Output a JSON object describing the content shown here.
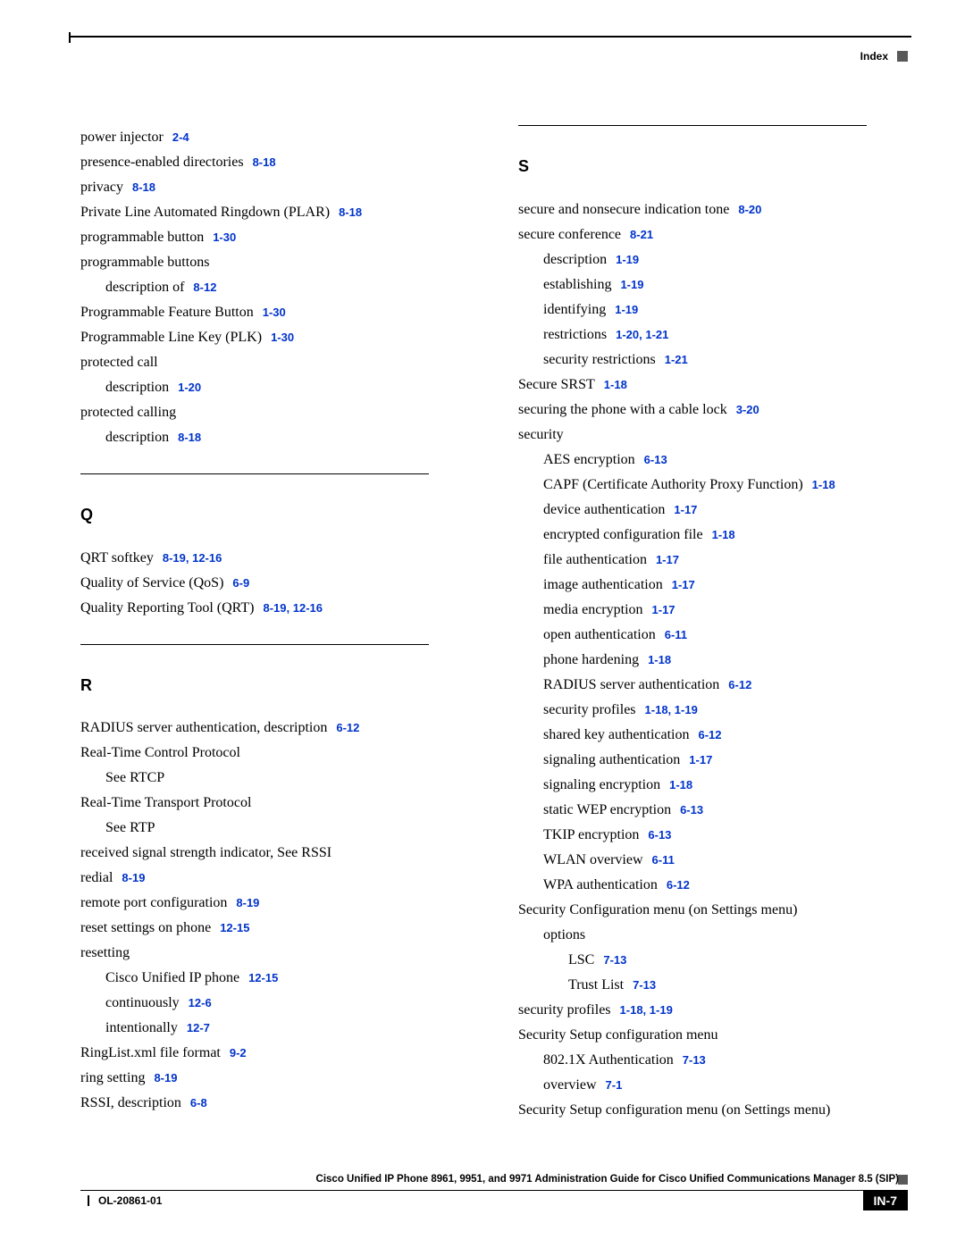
{
  "header": {
    "label": "Index"
  },
  "footer": {
    "title": "Cisco Unified IP Phone 8961, 9951, and 9971 Administration Guide for Cisco Unified Communications Manager 8.5 (SIP)",
    "doc": "OL-20861-01",
    "page": "IN-7"
  },
  "left": {
    "p": [
      {
        "t": "power injector",
        "r": "2-4"
      },
      {
        "t": "presence-enabled directories",
        "r": "8-18"
      },
      {
        "t": "privacy",
        "r": "8-18"
      },
      {
        "t": "Private Line Automated Ringdown (PLAR)",
        "r": "8-18"
      },
      {
        "t": "programmable button",
        "r": "1-30"
      },
      {
        "t": "programmable buttons"
      },
      {
        "t": "description of",
        "r": "8-12",
        "i": 1
      },
      {
        "t": "Programmable Feature Button",
        "r": "1-30"
      },
      {
        "t": "Programmable Line Key (PLK)",
        "r": "1-30"
      },
      {
        "t": "protected call"
      },
      {
        "t": "description",
        "r": "1-20",
        "i": 1
      },
      {
        "t": "protected calling"
      },
      {
        "t": "description",
        "r": "8-18",
        "i": 1
      }
    ],
    "q_letter": "Q",
    "q": [
      {
        "t": "QRT softkey",
        "r": "8-19, 12-16"
      },
      {
        "t": "Quality of Service (QoS)",
        "r": "6-9"
      },
      {
        "t": "Quality Reporting Tool (QRT)",
        "r": "8-19, 12-16"
      }
    ],
    "r_letter": "R",
    "r": [
      {
        "t": "RADIUS server authentication, description",
        "r": "6-12"
      },
      {
        "t": "Real-Time Control Protocol"
      },
      {
        "t": "See RTCP",
        "i": 1
      },
      {
        "t": "Real-Time Transport Protocol"
      },
      {
        "t": "See RTP",
        "i": 1
      },
      {
        "t": "received signal strength indicator, See RSSI"
      },
      {
        "t": "redial",
        "r": "8-19"
      },
      {
        "t": "remote port configuration",
        "r": "8-19"
      },
      {
        "t": "reset settings on phone",
        "r": "12-15"
      },
      {
        "t": "resetting"
      },
      {
        "t": "Cisco Unified IP phone",
        "r": "12-15",
        "i": 1
      },
      {
        "t": "continuously",
        "r": "12-6",
        "i": 1
      },
      {
        "t": "intentionally",
        "r": "12-7",
        "i": 1
      },
      {
        "t": "RingList.xml file format",
        "r": "9-2"
      },
      {
        "t": "ring setting",
        "r": "8-19"
      },
      {
        "t": "RSSI, description",
        "r": "6-8"
      }
    ]
  },
  "right": {
    "s_letter": "S",
    "s": [
      {
        "t": "secure and nonsecure indication tone",
        "r": "8-20"
      },
      {
        "t": "secure conference",
        "r": "8-21"
      },
      {
        "t": "description",
        "r": "1-19",
        "i": 1
      },
      {
        "t": "establishing",
        "r": "1-19",
        "i": 1
      },
      {
        "t": "identifying",
        "r": "1-19",
        "i": 1
      },
      {
        "t": "restrictions",
        "r": "1-20, 1-21",
        "i": 1
      },
      {
        "t": "security restrictions",
        "r": "1-21",
        "i": 1
      },
      {
        "t": "Secure SRST",
        "r": "1-18"
      },
      {
        "t": "securing the phone with a cable lock",
        "r": "3-20"
      },
      {
        "t": "security"
      },
      {
        "t": "AES encryption",
        "r": "6-13",
        "i": 1
      },
      {
        "t": "CAPF (Certificate Authority Proxy Function)",
        "r": "1-18",
        "i": 1
      },
      {
        "t": "device authentication",
        "r": "1-17",
        "i": 1
      },
      {
        "t": "encrypted configuration file",
        "r": "1-18",
        "i": 1
      },
      {
        "t": "file authentication",
        "r": "1-17",
        "i": 1
      },
      {
        "t": "image authentication",
        "r": "1-17",
        "i": 1
      },
      {
        "t": "media encryption",
        "r": "1-17",
        "i": 1
      },
      {
        "t": "open authentication",
        "r": "6-11",
        "i": 1
      },
      {
        "t": "phone hardening",
        "r": "1-18",
        "i": 1
      },
      {
        "t": "RADIUS server authentication",
        "r": "6-12",
        "i": 1
      },
      {
        "t": "security profiles",
        "r": "1-18, 1-19",
        "i": 1
      },
      {
        "t": "shared key authentication",
        "r": "6-12",
        "i": 1
      },
      {
        "t": "signaling authentication",
        "r": "1-17",
        "i": 1
      },
      {
        "t": "signaling encryption",
        "r": "1-18",
        "i": 1
      },
      {
        "t": "static WEP encryption",
        "r": "6-13",
        "i": 1
      },
      {
        "t": "TKIP encryption",
        "r": "6-13",
        "i": 1
      },
      {
        "t": "WLAN overview",
        "r": "6-11",
        "i": 1
      },
      {
        "t": "WPA authentication",
        "r": "6-12",
        "i": 1
      },
      {
        "t": "Security Configuration menu (on Settings menu)"
      },
      {
        "t": "options",
        "i": 1
      },
      {
        "t": "LSC",
        "r": "7-13",
        "i": 2
      },
      {
        "t": "Trust List",
        "r": "7-13",
        "i": 2
      },
      {
        "t": "security profiles",
        "r": "1-18, 1-19"
      },
      {
        "t": "Security Setup configuration menu"
      },
      {
        "t": "802.1X Authentication",
        "r": "7-13",
        "i": 1
      },
      {
        "t": "overview",
        "r": "7-1",
        "i": 1
      },
      {
        "t": "Security Setup configuration menu (on Settings menu)"
      }
    ]
  }
}
